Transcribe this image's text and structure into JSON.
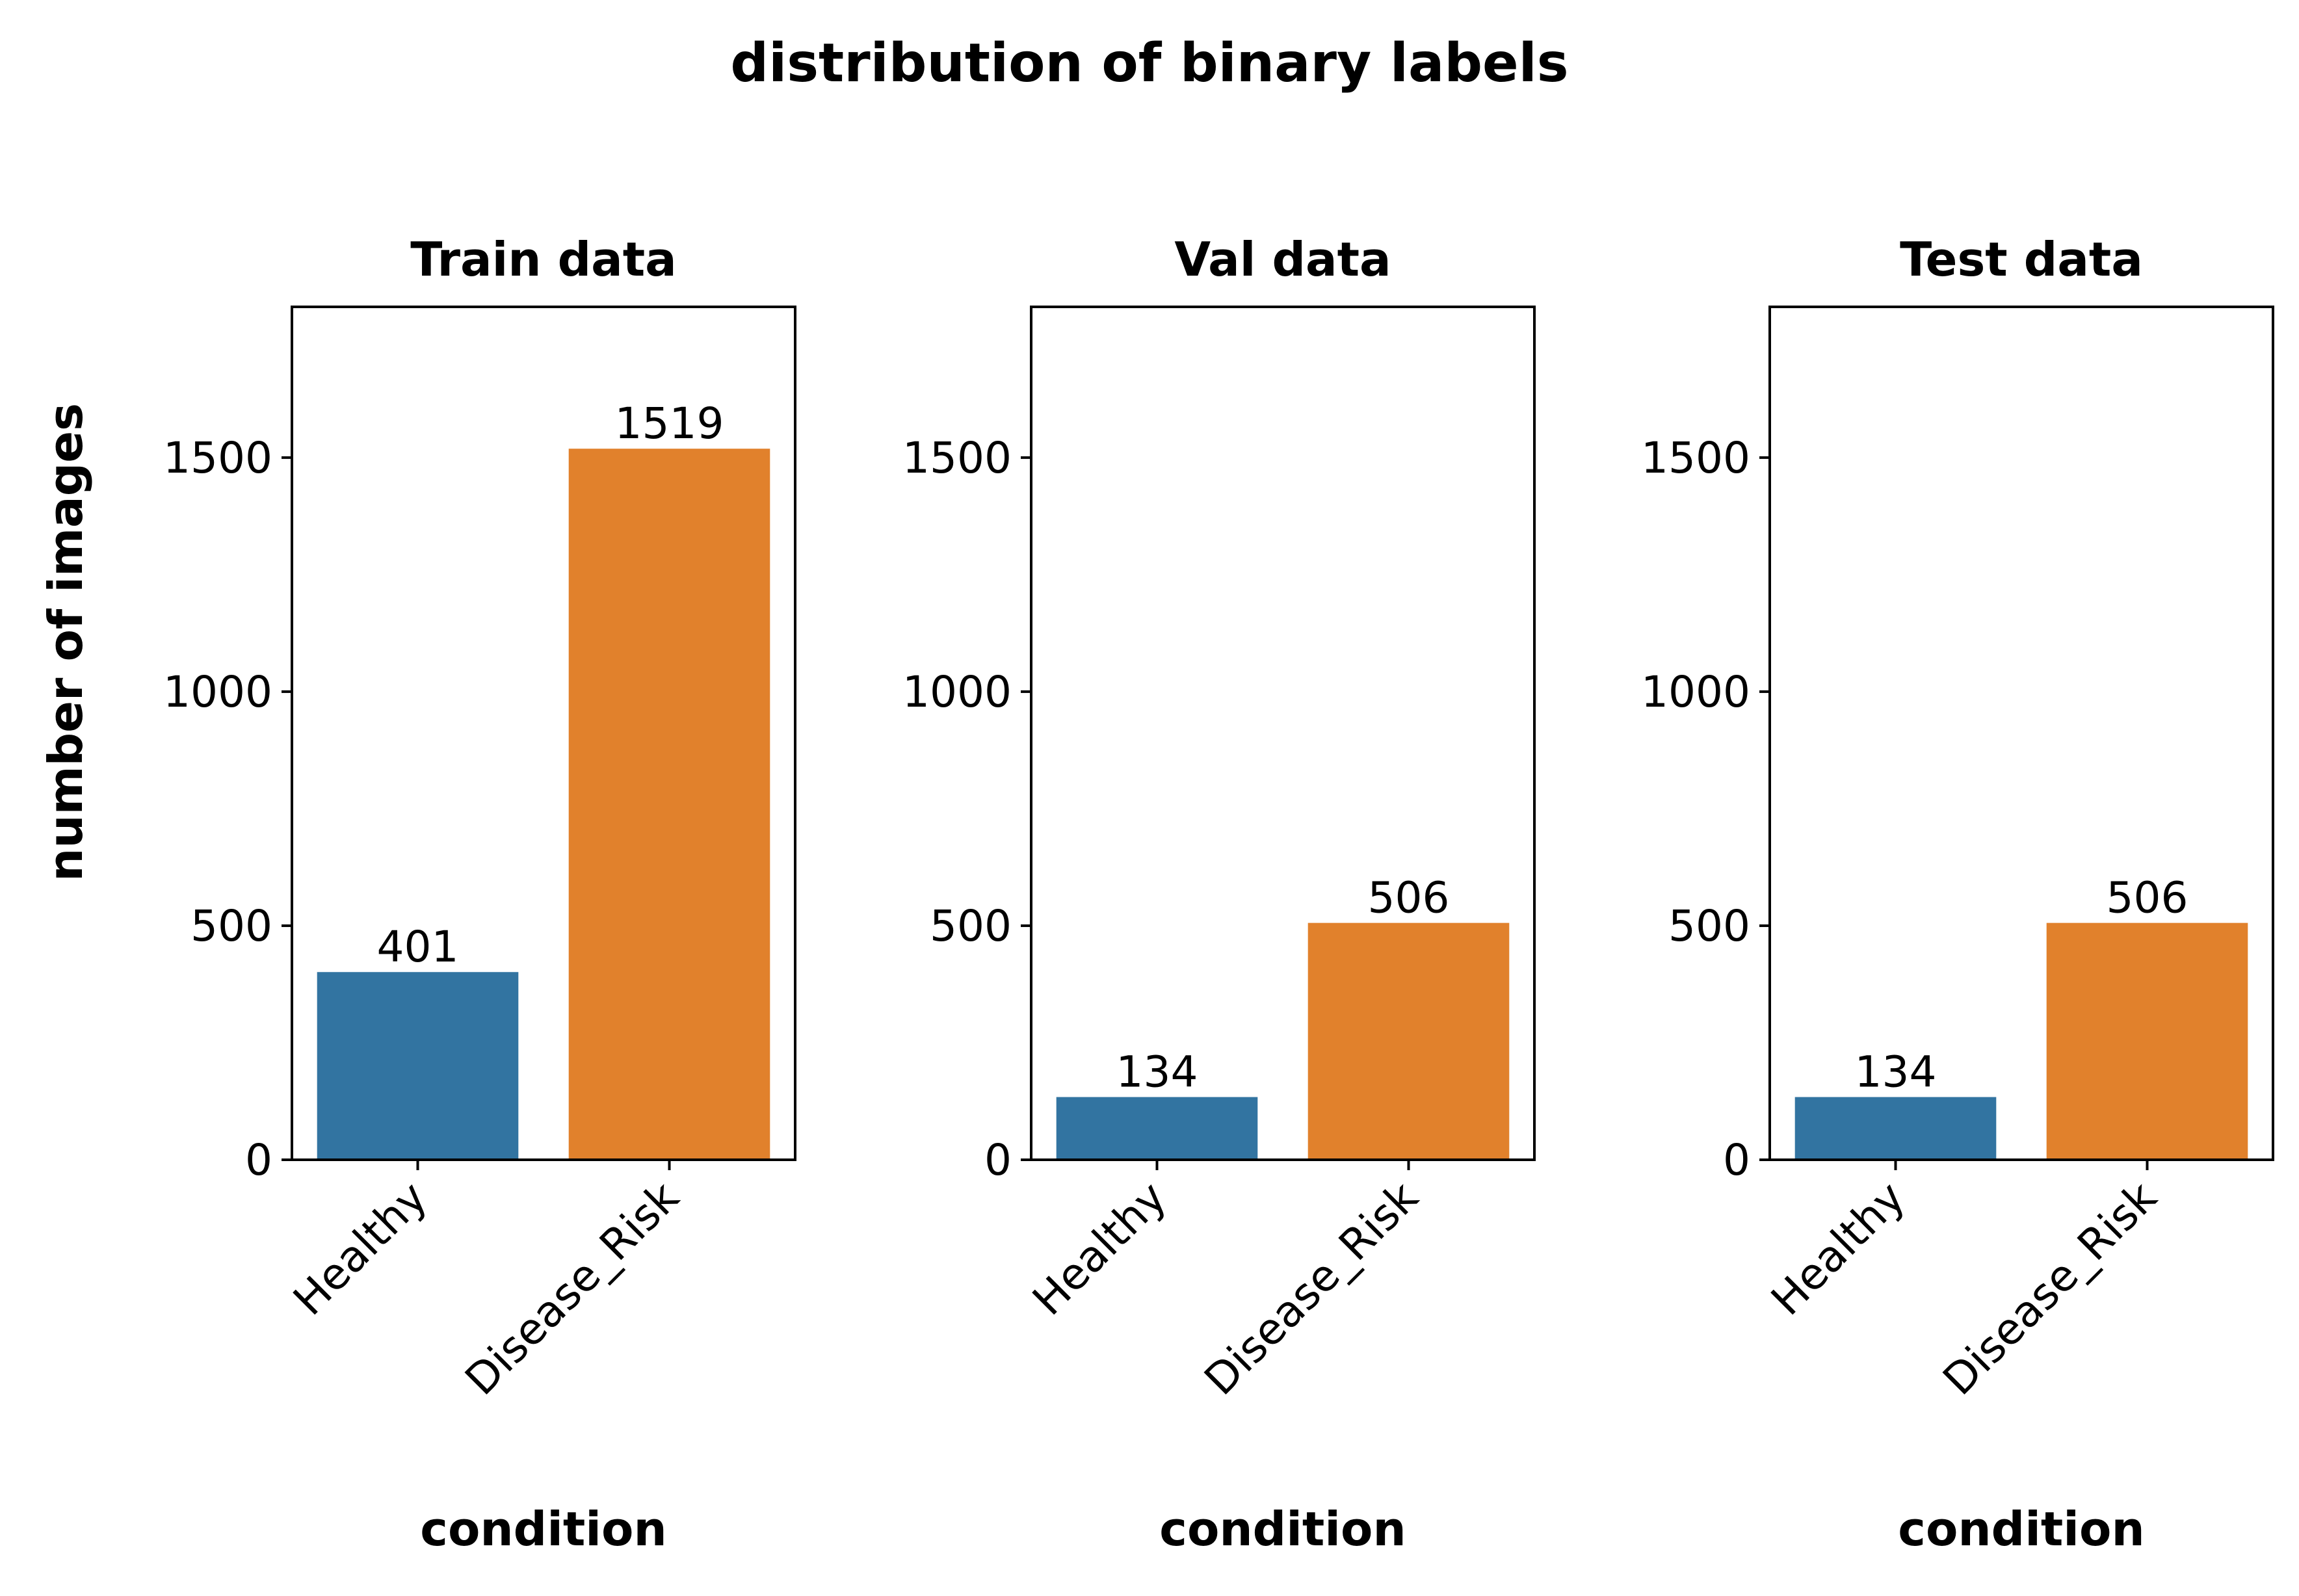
{
  "chart_data": {
    "type": "bar",
    "title": "distribution of binary labels",
    "ylabel": "number of images",
    "ylim": [
      0,
      1822
    ],
    "yticks": [
      0,
      500,
      1000,
      1500
    ],
    "categories": [
      "Healthy",
      "Disease_Risk"
    ],
    "colors": [
      "#3274a1",
      "#e1812c"
    ],
    "panels": [
      {
        "title": "Train data",
        "xlabel": "condition",
        "values": [
          401,
          1519
        ]
      },
      {
        "title": "Val data",
        "xlabel": "condition",
        "values": [
          134,
          506
        ]
      },
      {
        "title": "Test data",
        "xlabel": "condition",
        "values": [
          134,
          506
        ]
      }
    ]
  }
}
